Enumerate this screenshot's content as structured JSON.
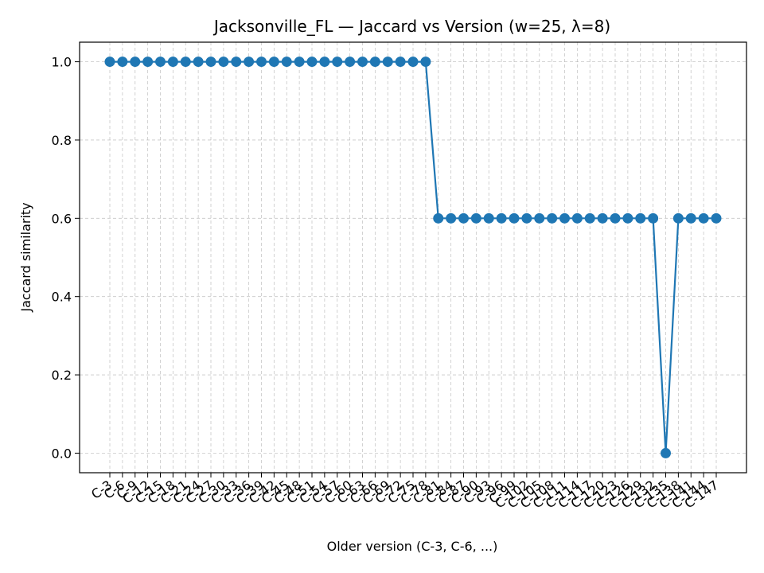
{
  "chart_data": {
    "type": "line",
    "title": "Jacksonville_FL — Jaccard vs Version (w=25, λ=8)",
    "xlabel": "Older version (C-3, C-6, ...)",
    "ylabel": "Jaccard similarity",
    "ylim": [
      -0.05,
      1.05
    ],
    "yticks": [
      "0.0",
      "0.2",
      "0.4",
      "0.6",
      "0.8",
      "1.0"
    ],
    "ytick_values": [
      0.0,
      0.2,
      0.4,
      0.6,
      0.8,
      1.0
    ],
    "grid": true,
    "line_color": "#1f77b4",
    "categories": [
      "C-3",
      "C-6",
      "C-9",
      "C-12",
      "C-15",
      "C-18",
      "C-21",
      "C-24",
      "C-27",
      "C-30",
      "C-33",
      "C-36",
      "C-39",
      "C-42",
      "C-45",
      "C-48",
      "C-51",
      "C-54",
      "C-57",
      "C-60",
      "C-63",
      "C-66",
      "C-69",
      "C-72",
      "C-75",
      "C-78",
      "C-81",
      "C-84",
      "C-87",
      "C-90",
      "C-93",
      "C-96",
      "C-99",
      "C-102",
      "C-105",
      "C-108",
      "C-111",
      "C-114",
      "C-117",
      "C-120",
      "C-123",
      "C-126",
      "C-129",
      "C-132",
      "C-135",
      "C-138",
      "C-141",
      "C-144",
      "C-147"
    ],
    "series": [
      {
        "values": [
          1.0,
          1.0,
          1.0,
          1.0,
          1.0,
          1.0,
          1.0,
          1.0,
          1.0,
          1.0,
          1.0,
          1.0,
          1.0,
          1.0,
          1.0,
          1.0,
          1.0,
          1.0,
          1.0,
          1.0,
          1.0,
          1.0,
          1.0,
          1.0,
          1.0,
          1.0,
          0.6,
          0.6,
          0.6,
          0.6,
          0.6,
          0.6,
          0.6,
          0.6,
          0.6,
          0.6,
          0.6,
          0.6,
          0.6,
          0.6,
          0.6,
          0.6,
          0.6,
          0.6,
          0.0,
          0.6,
          0.6,
          0.6,
          0.6
        ]
      }
    ]
  }
}
